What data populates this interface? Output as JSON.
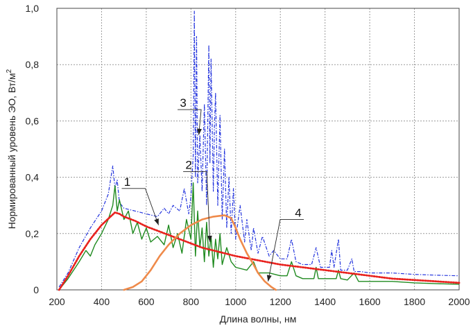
{
  "chart_data": {
    "type": "line",
    "xlabel": "Длина волны, нм",
    "ylabel_main": "Нормированный уровень ЭО, Вт/м",
    "ylabel_sup": "2",
    "xlim": [
      200,
      2000
    ],
    "ylim": [
      0,
      1.0
    ],
    "xticks": [
      "200",
      "400",
      "600",
      "800",
      "1000",
      "1200",
      "1400",
      "1600",
      "1800",
      "2000"
    ],
    "yticks": [
      "0",
      "0,2",
      "0,4",
      "0,6",
      "0,8",
      "1,0"
    ],
    "grid": true,
    "colors": {
      "series1": "#e8221e",
      "series2": "#1f8a1f",
      "series3": "#2233dd",
      "series4": "#ef8a4a",
      "grid": "#9a9a9a"
    },
    "series": [
      {
        "label": "1",
        "style": "dotted",
        "x": [
          210,
          250,
          300,
          350,
          400,
          440,
          460,
          480,
          500,
          550,
          600,
          650,
          700,
          750,
          800,
          850,
          900,
          950,
          1000,
          1100,
          1200,
          1300,
          1400,
          1500,
          1600,
          1700,
          1800,
          1900,
          2000
        ],
        "y": [
          0.0,
          0.05,
          0.12,
          0.18,
          0.23,
          0.26,
          0.275,
          0.27,
          0.26,
          0.245,
          0.225,
          0.21,
          0.195,
          0.18,
          0.165,
          0.15,
          0.14,
          0.13,
          0.12,
          0.105,
          0.09,
          0.08,
          0.07,
          0.06,
          0.05,
          0.04,
          0.035,
          0.03,
          0.025
        ]
      },
      {
        "label": "2",
        "style": "solid",
        "x": [
          210,
          250,
          300,
          330,
          350,
          370,
          400,
          430,
          450,
          460,
          470,
          480,
          500,
          520,
          540,
          560,
          580,
          600,
          620,
          650,
          680,
          700,
          720,
          740,
          760,
          780,
          800,
          810,
          820,
          830,
          840,
          850,
          860,
          870,
          880,
          890,
          900,
          910,
          920,
          930,
          940,
          960,
          980,
          1000,
          1050,
          1080,
          1100,
          1150,
          1200,
          1230,
          1250,
          1270,
          1300,
          1350,
          1360,
          1370,
          1400,
          1450,
          1460,
          1470,
          1500,
          1530,
          1550,
          1600,
          1700,
          1800,
          1900,
          2000
        ],
        "y": [
          0.0,
          0.04,
          0.1,
          0.14,
          0.12,
          0.16,
          0.2,
          0.25,
          0.3,
          0.37,
          0.28,
          0.32,
          0.25,
          0.28,
          0.2,
          0.24,
          0.18,
          0.22,
          0.17,
          0.19,
          0.16,
          0.23,
          0.15,
          0.2,
          0.13,
          0.25,
          0.18,
          0.38,
          0.12,
          0.28,
          0.15,
          0.22,
          0.1,
          0.24,
          0.12,
          0.19,
          0.08,
          0.18,
          0.11,
          0.2,
          0.09,
          0.15,
          0.1,
          0.08,
          0.07,
          0.1,
          0.06,
          0.06,
          0.05,
          0.05,
          0.1,
          0.05,
          0.04,
          0.04,
          0.08,
          0.04,
          0.04,
          0.04,
          0.07,
          0.04,
          0.035,
          0.06,
          0.03,
          0.03,
          0.03,
          0.025,
          0.022,
          0.02
        ]
      },
      {
        "label": "3",
        "style": "dash-dot",
        "x": [
          210,
          250,
          300,
          350,
          400,
          430,
          450,
          460,
          470,
          480,
          500,
          550,
          600,
          650,
          680,
          700,
          720,
          750,
          770,
          790,
          800,
          810,
          815,
          820,
          825,
          830,
          840,
          850,
          860,
          870,
          880,
          885,
          890,
          900,
          905,
          910,
          920,
          930,
          940,
          950,
          960,
          970,
          980,
          990,
          1000,
          1020,
          1040,
          1050,
          1070,
          1080,
          1100,
          1120,
          1150,
          1170,
          1200,
          1230,
          1250,
          1270,
          1300,
          1340,
          1360,
          1380,
          1420,
          1430,
          1440,
          1460,
          1470,
          1500,
          1520,
          1530,
          1560,
          1600,
          1700,
          1800,
          1900,
          2000
        ],
        "y": [
          0.01,
          0.06,
          0.15,
          0.22,
          0.28,
          0.34,
          0.44,
          0.36,
          0.39,
          0.31,
          0.29,
          0.28,
          0.27,
          0.26,
          0.29,
          0.27,
          0.3,
          0.28,
          0.36,
          0.27,
          0.33,
          0.48,
          0.99,
          0.4,
          0.9,
          0.38,
          0.55,
          0.35,
          0.66,
          0.3,
          0.87,
          0.45,
          0.82,
          0.35,
          0.58,
          0.7,
          0.3,
          0.62,
          0.25,
          0.5,
          0.22,
          0.4,
          0.2,
          0.36,
          0.18,
          0.3,
          0.17,
          0.25,
          0.14,
          0.22,
          0.13,
          0.19,
          0.12,
          0.14,
          0.11,
          0.11,
          0.18,
          0.1,
          0.09,
          0.09,
          0.15,
          0.08,
          0.08,
          0.14,
          0.08,
          0.18,
          0.07,
          0.07,
          0.11,
          0.065,
          0.065,
          0.06,
          0.06,
          0.055,
          0.052,
          0.05
        ]
      },
      {
        "label": "4",
        "style": "solid-thick",
        "x": [
          500,
          540,
          580,
          620,
          660,
          700,
          750,
          800,
          850,
          900,
          950,
          980,
          1000,
          1020,
          1050,
          1080,
          1100,
          1130,
          1160,
          1180
        ],
        "y": [
          0.0,
          0.01,
          0.03,
          0.07,
          0.12,
          0.16,
          0.2,
          0.23,
          0.25,
          0.26,
          0.265,
          0.255,
          0.22,
          0.18,
          0.13,
          0.09,
          0.06,
          0.03,
          0.01,
          0.0
        ]
      }
    ],
    "annotations": [
      {
        "text": "1",
        "text_at": [
          515,
          0.37
        ],
        "arrow_to": [
          655,
          0.23
        ]
      },
      {
        "text": "2",
        "text_at": [
          790,
          0.43
        ],
        "arrow_to": [
          885,
          0.17
        ]
      },
      {
        "text": "3",
        "text_at": [
          765,
          0.65
        ],
        "arrow_to": [
          835,
          0.55
        ]
      },
      {
        "text": "4",
        "text_at": [
          1280,
          0.26
        ],
        "arrow_to": [
          1145,
          0.03
        ]
      }
    ]
  }
}
